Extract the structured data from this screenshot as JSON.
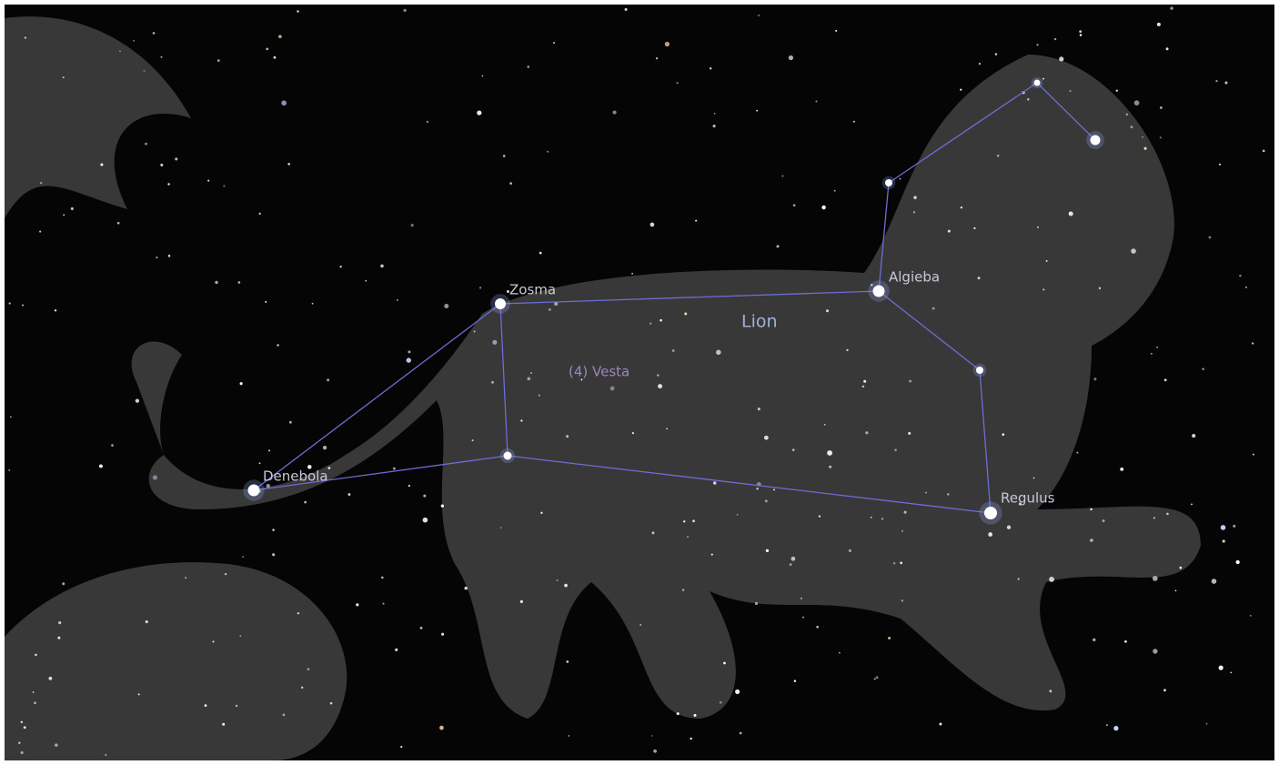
{
  "stars": [
    "Zosma",
    "Algieba",
    "Denebola",
    "Regulus"
  ],
  "constellation": "Lion",
  "asteroid": "(4) Vesta"
}
